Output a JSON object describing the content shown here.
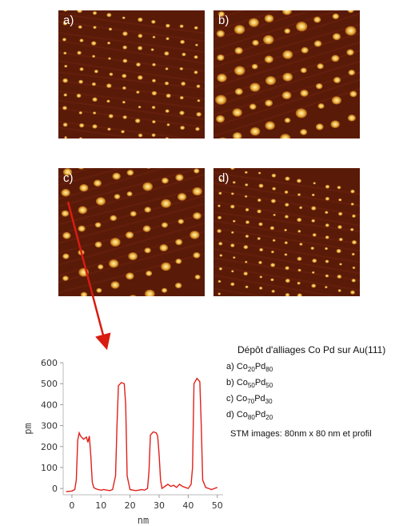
{
  "panels": [
    {
      "id": "a",
      "label": "a)"
    },
    {
      "id": "b",
      "label": "b)"
    },
    {
      "id": "c",
      "label": "c)"
    },
    {
      "id": "d",
      "label": "d)"
    }
  ],
  "colors": {
    "stm_background": "#5a1a08",
    "island_core": "#fff3b0",
    "island_edge": "#d98a1a",
    "profile_line": "#e0201a",
    "arrow": "#d81c10"
  },
  "caption": {
    "title": "Dépôt d'alliages Co Pd sur Au(111)",
    "items": [
      {
        "prefix": "a) Co",
        "co_sub": "20",
        "pd": "Pd",
        "pd_sub": "80"
      },
      {
        "prefix": "b) Co",
        "co_sub": "50",
        "pd": "Pd",
        "pd_sub": "50"
      },
      {
        "prefix": "c) Co",
        "co_sub": "70",
        "pd": "Pd",
        "pd_sub": "30"
      },
      {
        "prefix": "d) Co",
        "co_sub": "80",
        "pd": "Pd",
        "pd_sub": "20"
      }
    ],
    "footer": "STM images: 80nm x 80 nm et profil"
  },
  "chart_data": {
    "type": "line",
    "xlabel": "nm",
    "ylabel": "pm",
    "xlim": [
      -3,
      52
    ],
    "ylim": [
      -30,
      600
    ],
    "xticks": [
      0,
      10,
      20,
      30,
      40,
      50
    ],
    "yticks": [
      0,
      100,
      200,
      300,
      400,
      500,
      600
    ],
    "series": [
      {
        "x": [
          -2,
          0,
          1,
          1.5,
          2,
          2.5,
          3,
          4,
          5,
          5.5,
          6,
          6.5,
          7,
          7.5,
          8,
          9,
          10,
          11,
          12,
          13,
          14,
          15,
          15.5,
          16,
          17,
          18,
          18.5,
          19,
          20,
          21,
          22,
          23,
          24,
          25,
          26,
          26.5,
          27,
          28,
          29,
          29.5,
          30,
          30.5,
          31,
          32,
          33,
          34,
          35,
          36,
          37,
          38,
          39,
          40,
          41,
          41.5,
          42,
          43,
          44,
          44.5,
          45,
          46,
          47,
          48,
          49,
          50
        ],
        "y": [
          -15,
          -12,
          -5,
          40,
          230,
          265,
          250,
          235,
          245,
          220,
          250,
          160,
          30,
          5,
          0,
          -5,
          -8,
          -5,
          -8,
          -10,
          -5,
          60,
          300,
          490,
          505,
          500,
          400,
          60,
          -5,
          -8,
          -10,
          -8,
          -5,
          -8,
          0,
          80,
          255,
          270,
          265,
          250,
          160,
          40,
          0,
          10,
          20,
          10,
          15,
          5,
          20,
          10,
          5,
          0,
          20,
          100,
          500,
          525,
          510,
          300,
          40,
          5,
          0,
          -5,
          0,
          5
        ]
      }
    ]
  }
}
